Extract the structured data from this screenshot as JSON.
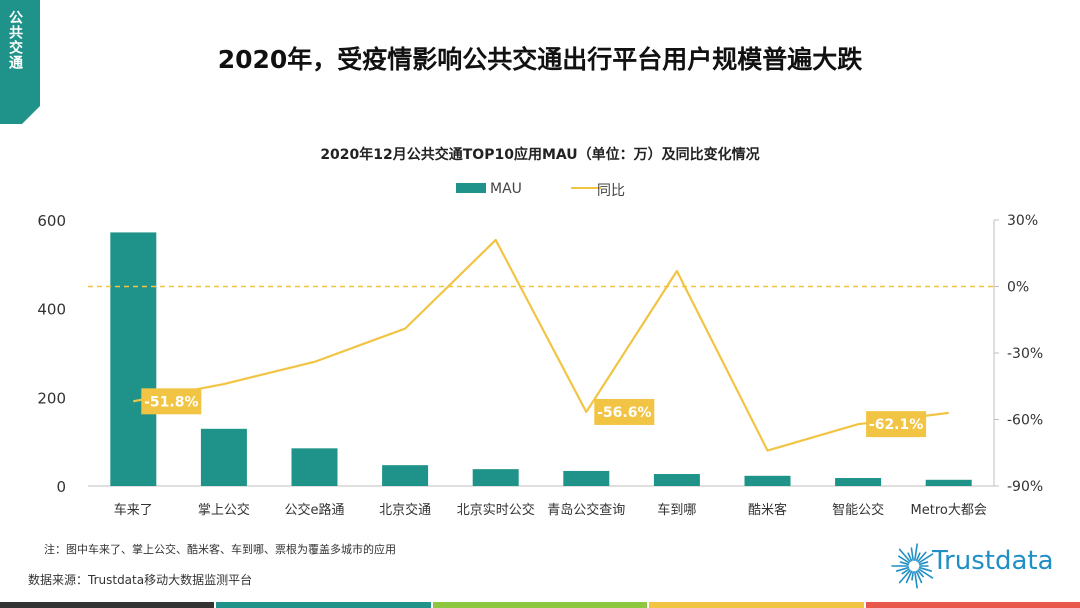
{
  "section_tab": {
    "label": "公共交通",
    "color": "#1f9389"
  },
  "page_title": "2020年，受疫情影响公共交通出行平台用户规模普遍大跌",
  "chart_data": {
    "type": "bar",
    "title": "2020年12月公共交通TOP10应用MAU（单位：万）及同比变化情况",
    "categories": [
      "车来了",
      "掌上公交",
      "公交e路通",
      "北京交通",
      "北京实时公交",
      "青岛公交查询",
      "车到哪",
      "酷米客",
      "智能公交",
      "Metro大都会"
    ],
    "series": [
      {
        "name": "MAU",
        "type": "bar",
        "axis": "left",
        "color": "#1f9389",
        "values": [
          572,
          129,
          85,
          47,
          38,
          34,
          27,
          23,
          18,
          14
        ]
      },
      {
        "name": "同比",
        "type": "line",
        "axis": "right",
        "color": "#f2c443",
        "values": [
          -51.8,
          -44,
          -34,
          -19,
          21,
          -56.6,
          7,
          -74,
          -62.1,
          -57
        ]
      }
    ],
    "left_axis": {
      "ylim": [
        0,
        600
      ],
      "ticks": [
        "0",
        "200",
        "400",
        "600"
      ]
    },
    "right_axis": {
      "ylim": [
        -90,
        30
      ],
      "ticks": [
        "-90%",
        "-60%",
        "-30%",
        "0%",
        "30%"
      ]
    },
    "reference_line": {
      "value": 0,
      "axis": "right",
      "style": "dashed"
    },
    "data_labels": [
      {
        "index": 0,
        "text": "-51.8%"
      },
      {
        "index": 5,
        "text": "-56.6%"
      },
      {
        "index": 8,
        "text": "-62.1%"
      }
    ],
    "legend": {
      "position": "top",
      "items": [
        "MAU",
        "同比"
      ]
    }
  },
  "footnote": "注：图中车来了、掌上公交、酷米客、车到哪、票根为覆盖多城市的应用",
  "source": "数据来源：Trustdata移动大数据监测平台",
  "logo": {
    "text": "Trustdata",
    "color": "#1f8fc5"
  },
  "footer_colors": [
    "#333333",
    "#1f9389",
    "#8dc63f",
    "#f2c443",
    "#e8584a"
  ]
}
